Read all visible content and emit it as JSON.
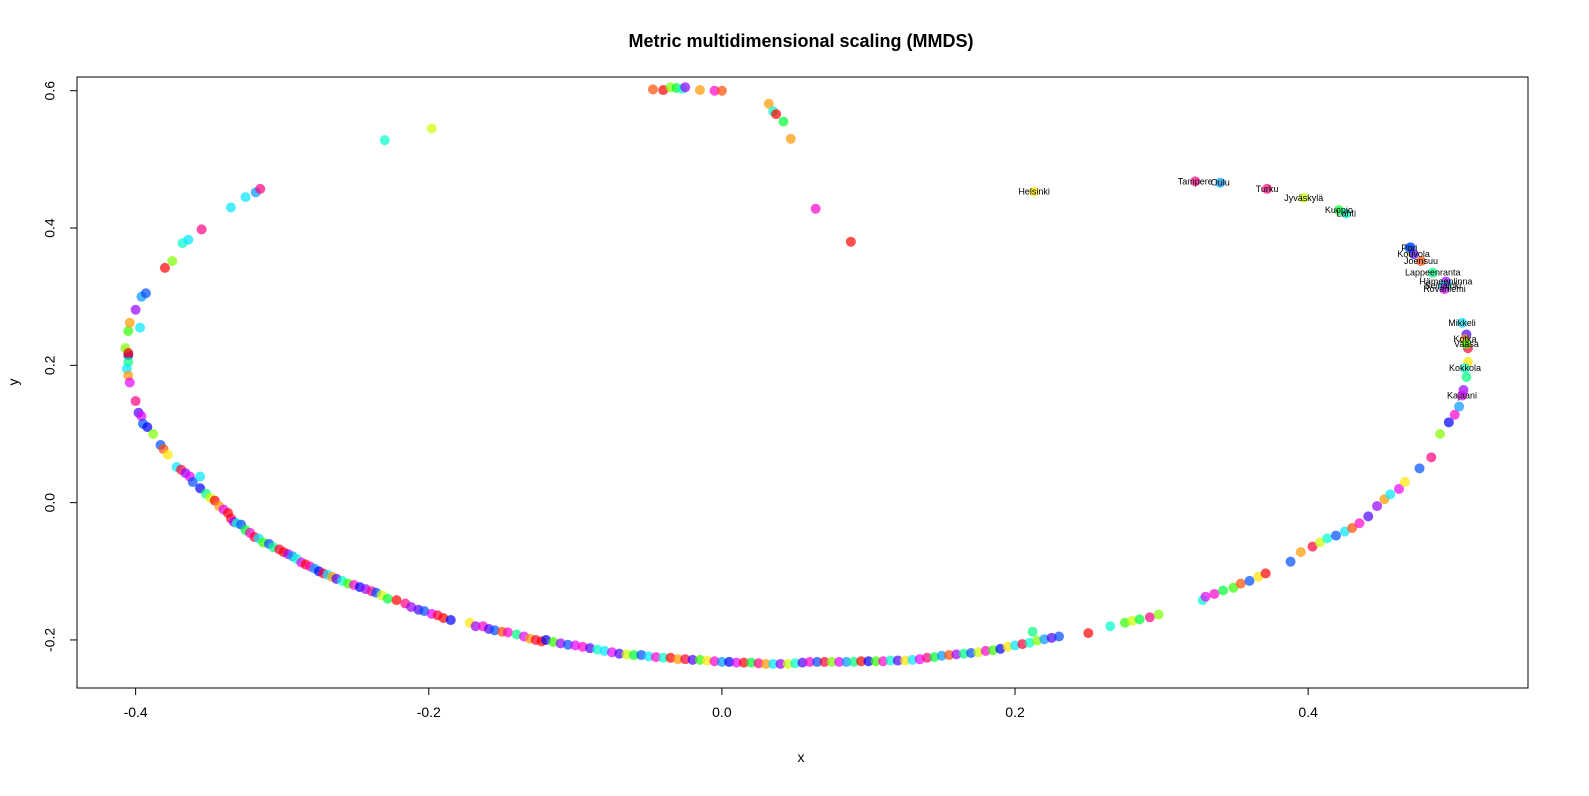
{
  "chart_data": {
    "type": "scatter",
    "title": "Metric multidimensional scaling (MMDS)",
    "xlabel": "x",
    "ylabel": "y",
    "xlim": [
      -0.44,
      0.55
    ],
    "ylim": [
      -0.27,
      0.62
    ],
    "xticks": [
      -0.4,
      -0.2,
      0.0,
      0.2,
      0.4
    ],
    "xtick_labels": [
      "-0.4",
      "-0.2",
      "0.0",
      "0.2",
      "0.4"
    ],
    "yticks": [
      -0.2,
      0.0,
      0.2,
      0.4,
      0.6
    ],
    "ytick_labels": [
      "-0.2",
      "0.0",
      "0.2",
      "0.4",
      "0.6"
    ],
    "grid": false,
    "legend": "none",
    "marker_alpha": 0.7,
    "palette": [
      "#ff0000",
      "#ff4d00",
      "#ff9900",
      "#ffe600",
      "#ccff00",
      "#80ff00",
      "#33ff00",
      "#00ff33",
      "#00ff80",
      "#00ffcc",
      "#00e6ff",
      "#0099ff",
      "#004dff",
      "#0000ff",
      "#4d00ff",
      "#9900ff",
      "#e600ff",
      "#ff00cc",
      "#ff0080",
      "#ff0033"
    ],
    "labeled_points": [
      {
        "label": "Helsinki",
        "x": 0.213,
        "y": 0.453,
        "c": 3
      },
      {
        "label": "Tampere",
        "x": 0.323,
        "y": 0.468,
        "c": 18
      },
      {
        "label": "Oulu",
        "x": 0.34,
        "y": 0.466,
        "c": 11
      },
      {
        "label": "Turku",
        "x": 0.372,
        "y": 0.457,
        "c": 18
      },
      {
        "label": "Jyväskylä",
        "x": 0.397,
        "y": 0.444,
        "c": 4
      },
      {
        "label": "Kuopio",
        "x": 0.421,
        "y": 0.426,
        "c": 7
      },
      {
        "label": "Lahti",
        "x": 0.426,
        "y": 0.421,
        "c": 9
      },
      {
        "label": "Pori",
        "x": 0.469,
        "y": 0.371,
        "c": 12
      },
      {
        "label": "Kouvola",
        "x": 0.472,
        "y": 0.362,
        "c": 14
      },
      {
        "label": "Joensuu",
        "x": 0.477,
        "y": 0.352,
        "c": 1
      },
      {
        "label": "Lappeenranta",
        "x": 0.485,
        "y": 0.335,
        "c": 8
      },
      {
        "label": "Hämeenlinna",
        "x": 0.494,
        "y": 0.322,
        "c": 15
      },
      {
        "label": "Seinäjoki",
        "x": 0.492,
        "y": 0.316,
        "c": 10
      },
      {
        "label": "Rovaniemi",
        "x": 0.493,
        "y": 0.311,
        "c": 16
      },
      {
        "label": "Mikkeli",
        "x": 0.505,
        "y": 0.262,
        "c": 10
      },
      {
        "label": "Kotka",
        "x": 0.507,
        "y": 0.238,
        "c": 2
      },
      {
        "label": "Vaasa",
        "x": 0.508,
        "y": 0.231,
        "c": 6
      },
      {
        "label": "Kokkola",
        "x": 0.507,
        "y": 0.196,
        "c": 9
      },
      {
        "label": "Kajaani",
        "x": 0.505,
        "y": 0.156,
        "c": 16
      }
    ],
    "points": [
      [
        -0.405,
        0.215,
        13
      ],
      [
        -0.405,
        0.205,
        8
      ],
      [
        -0.406,
        0.195,
        10
      ],
      [
        -0.405,
        0.185,
        2
      ],
      [
        -0.404,
        0.175,
        16
      ],
      [
        -0.407,
        0.225,
        5
      ],
      [
        -0.405,
        0.25,
        6
      ],
      [
        -0.404,
        0.262,
        2
      ],
      [
        -0.4,
        0.281,
        15
      ],
      [
        -0.397,
        0.255,
        10
      ],
      [
        -0.4,
        0.148,
        18
      ],
      [
        -0.398,
        0.131,
        14
      ],
      [
        -0.396,
        0.126,
        16
      ],
      [
        -0.395,
        0.115,
        12
      ],
      [
        -0.392,
        0.11,
        13
      ],
      [
        -0.388,
        0.1,
        5
      ],
      [
        -0.383,
        0.084,
        12
      ],
      [
        -0.381,
        0.078,
        1
      ],
      [
        -0.378,
        0.07,
        3
      ],
      [
        -0.372,
        0.052,
        10
      ],
      [
        -0.369,
        0.048,
        19
      ],
      [
        -0.366,
        0.043,
        15
      ],
      [
        -0.363,
        0.038,
        16
      ],
      [
        -0.361,
        0.03,
        12
      ],
      [
        -0.356,
        0.038,
        10
      ],
      [
        -0.356,
        0.021,
        13
      ],
      [
        -0.352,
        0.013,
        8
      ],
      [
        -0.349,
        0.007,
        4
      ],
      [
        -0.346,
        0.003,
        0
      ],
      [
        -0.343,
        -0.005,
        2
      ],
      [
        -0.34,
        -0.01,
        16
      ],
      [
        -0.337,
        -0.015,
        0
      ],
      [
        -0.335,
        -0.023,
        19
      ],
      [
        -0.333,
        -0.028,
        15
      ],
      [
        -0.331,
        -0.03,
        9
      ],
      [
        -0.328,
        -0.032,
        12
      ],
      [
        -0.325,
        -0.04,
        7
      ],
      [
        -0.322,
        -0.044,
        17
      ],
      [
        -0.319,
        -0.05,
        19
      ],
      [
        -0.316,
        -0.052,
        10
      ],
      [
        -0.313,
        -0.058,
        6
      ],
      [
        -0.309,
        -0.06,
        12
      ],
      [
        -0.306,
        -0.065,
        8
      ],
      [
        -0.302,
        -0.068,
        19
      ],
      [
        -0.299,
        -0.072,
        0
      ],
      [
        -0.296,
        -0.075,
        15
      ],
      [
        -0.293,
        -0.078,
        11
      ],
      [
        -0.29,
        -0.082,
        9
      ],
      [
        -0.287,
        -0.087,
        16
      ],
      [
        -0.284,
        -0.09,
        0
      ],
      [
        -0.281,
        -0.093,
        17
      ],
      [
        -0.278,
        -0.096,
        11
      ],
      [
        -0.275,
        -0.1,
        13
      ],
      [
        -0.272,
        -0.103,
        19
      ],
      [
        -0.269,
        -0.105,
        10
      ],
      [
        -0.266,
        -0.108,
        2
      ],
      [
        -0.263,
        -0.111,
        14
      ],
      [
        -0.259,
        -0.114,
        9
      ],
      [
        -0.255,
        -0.118,
        6
      ],
      [
        -0.251,
        -0.12,
        17
      ],
      [
        -0.247,
        -0.123,
        13
      ],
      [
        -0.243,
        -0.126,
        15
      ],
      [
        -0.239,
        -0.129,
        18
      ],
      [
        -0.236,
        -0.131,
        12
      ],
      [
        -0.232,
        -0.135,
        4
      ],
      [
        -0.228,
        -0.14,
        7
      ],
      [
        -0.222,
        -0.142,
        0
      ],
      [
        -0.216,
        -0.147,
        18
      ],
      [
        -0.212,
        -0.152,
        15
      ],
      [
        -0.207,
        -0.156,
        14
      ],
      [
        -0.203,
        -0.158,
        12
      ],
      [
        -0.198,
        -0.162,
        16
      ],
      [
        -0.194,
        -0.164,
        19
      ],
      [
        -0.19,
        -0.168,
        0
      ],
      [
        -0.185,
        -0.171,
        13
      ],
      [
        -0.172,
        -0.175,
        3
      ],
      [
        -0.168,
        -0.18,
        15
      ],
      [
        -0.163,
        -0.18,
        17
      ],
      [
        -0.159,
        -0.184,
        14
      ],
      [
        -0.155,
        -0.186,
        12
      ],
      [
        -0.15,
        -0.188,
        1
      ],
      [
        -0.146,
        -0.189,
        17
      ],
      [
        -0.14,
        -0.192,
        8
      ],
      [
        -0.135,
        -0.195,
        16
      ],
      [
        -0.131,
        -0.198,
        2
      ],
      [
        -0.127,
        -0.2,
        19
      ],
      [
        -0.123,
        -0.202,
        0
      ],
      [
        -0.12,
        -0.2,
        13
      ],
      [
        -0.115,
        -0.203,
        6
      ],
      [
        -0.11,
        -0.205,
        15
      ],
      [
        -0.105,
        -0.207,
        12
      ],
      [
        -0.1,
        -0.208,
        16
      ],
      [
        -0.095,
        -0.21,
        17
      ],
      [
        -0.09,
        -0.212,
        14
      ],
      [
        -0.085,
        -0.214,
        9
      ],
      [
        -0.08,
        -0.216,
        10
      ],
      [
        -0.075,
        -0.218,
        16
      ],
      [
        -0.07,
        -0.22,
        14
      ],
      [
        -0.065,
        -0.221,
        4
      ],
      [
        -0.06,
        -0.222,
        7
      ],
      [
        -0.055,
        -0.222,
        12
      ],
      [
        -0.05,
        -0.224,
        10
      ],
      [
        -0.045,
        -0.225,
        17
      ],
      [
        -0.04,
        -0.226,
        9
      ],
      [
        -0.035,
        -0.226,
        0
      ],
      [
        -0.03,
        -0.228,
        2
      ],
      [
        -0.025,
        -0.228,
        19
      ],
      [
        -0.02,
        -0.229,
        14
      ],
      [
        -0.015,
        -0.229,
        6
      ],
      [
        -0.01,
        -0.23,
        3
      ],
      [
        -0.005,
        -0.231,
        17
      ],
      [
        0.0,
        -0.232,
        11
      ],
      [
        0.005,
        -0.232,
        13
      ],
      [
        0.01,
        -0.233,
        16
      ],
      [
        0.015,
        -0.233,
        0
      ],
      [
        0.02,
        -0.233,
        7
      ],
      [
        0.025,
        -0.234,
        18
      ],
      [
        0.03,
        -0.235,
        2
      ],
      [
        0.035,
        -0.235,
        10
      ],
      [
        0.04,
        -0.235,
        15
      ],
      [
        0.045,
        -0.235,
        4
      ],
      [
        0.05,
        -0.234,
        9
      ],
      [
        0.055,
        -0.233,
        14
      ],
      [
        0.06,
        -0.232,
        17
      ],
      [
        0.065,
        -0.232,
        12
      ],
      [
        0.07,
        -0.232,
        19
      ],
      [
        0.075,
        -0.232,
        5
      ],
      [
        0.08,
        -0.232,
        16
      ],
      [
        0.085,
        -0.232,
        11
      ],
      [
        0.09,
        -0.232,
        8
      ],
      [
        0.095,
        -0.231,
        0
      ],
      [
        0.1,
        -0.231,
        13
      ],
      [
        0.105,
        -0.231,
        6
      ],
      [
        0.11,
        -0.231,
        17
      ],
      [
        0.115,
        -0.23,
        9
      ],
      [
        0.12,
        -0.23,
        14
      ],
      [
        0.125,
        -0.23,
        3
      ],
      [
        0.13,
        -0.229,
        10
      ],
      [
        0.135,
        -0.228,
        16
      ],
      [
        0.14,
        -0.226,
        18
      ],
      [
        0.145,
        -0.225,
        7
      ],
      [
        0.15,
        -0.223,
        11
      ],
      [
        0.155,
        -0.222,
        1
      ],
      [
        0.16,
        -0.221,
        15
      ],
      [
        0.165,
        -0.22,
        8
      ],
      [
        0.17,
        -0.219,
        12
      ],
      [
        0.175,
        -0.218,
        4
      ],
      [
        0.18,
        -0.216,
        17
      ],
      [
        0.185,
        -0.215,
        6
      ],
      [
        0.19,
        -0.213,
        13
      ],
      [
        0.195,
        -0.21,
        3
      ],
      [
        0.2,
        -0.208,
        10
      ],
      [
        0.205,
        -0.206,
        19
      ],
      [
        0.21,
        -0.204,
        9
      ],
      [
        0.215,
        -0.201,
        5
      ],
      [
        0.22,
        -0.199,
        11
      ],
      [
        0.225,
        -0.197,
        14
      ],
      [
        0.212,
        -0.188,
        8
      ],
      [
        0.23,
        -0.195,
        12
      ],
      [
        0.25,
        -0.19,
        0
      ],
      [
        0.265,
        -0.18,
        9
      ],
      [
        0.275,
        -0.175,
        6
      ],
      [
        0.28,
        -0.172,
        4
      ],
      [
        0.285,
        -0.17,
        7
      ],
      [
        0.292,
        -0.167,
        18
      ],
      [
        0.298,
        -0.163,
        5
      ],
      [
        0.328,
        -0.142,
        9
      ],
      [
        0.33,
        -0.137,
        16
      ],
      [
        0.336,
        -0.133,
        17
      ],
      [
        0.342,
        -0.128,
        7
      ],
      [
        0.349,
        -0.124,
        6
      ],
      [
        0.354,
        -0.118,
        1
      ],
      [
        0.36,
        -0.114,
        12
      ],
      [
        0.366,
        -0.108,
        3
      ],
      [
        0.371,
        -0.103,
        0
      ],
      [
        0.388,
        -0.086,
        12
      ],
      [
        0.395,
        -0.072,
        2
      ],
      [
        0.403,
        -0.064,
        19
      ],
      [
        0.408,
        -0.058,
        4
      ],
      [
        0.413,
        -0.052,
        9
      ],
      [
        0.419,
        -0.048,
        12
      ],
      [
        0.425,
        -0.042,
        10
      ],
      [
        0.43,
        -0.037,
        1
      ],
      [
        0.435,
        -0.03,
        17
      ],
      [
        0.441,
        -0.02,
        14
      ],
      [
        0.447,
        -0.005,
        15
      ],
      [
        0.452,
        0.005,
        2
      ],
      [
        0.456,
        0.012,
        10
      ],
      [
        0.462,
        0.02,
        16
      ],
      [
        0.466,
        0.03,
        3
      ],
      [
        0.476,
        0.05,
        12
      ],
      [
        0.484,
        0.066,
        18
      ],
      [
        0.49,
        0.1,
        5
      ],
      [
        0.496,
        0.117,
        13
      ],
      [
        0.5,
        0.128,
        17
      ],
      [
        0.503,
        0.14,
        11
      ],
      [
        0.506,
        0.164,
        15
      ],
      [
        0.508,
        0.183,
        8
      ],
      [
        0.509,
        0.205,
        3
      ],
      [
        0.509,
        0.225,
        19
      ],
      [
        0.508,
        0.245,
        14
      ],
      [
        0.495,
        0.318,
        9
      ],
      [
        0.47,
        0.366,
        4
      ],
      [
        0.47,
        0.372,
        12
      ],
      [
        -0.405,
        0.218,
        0
      ],
      [
        -0.396,
        0.3,
        11
      ],
      [
        -0.393,
        0.305,
        12
      ],
      [
        -0.38,
        0.342,
        0
      ],
      [
        -0.375,
        0.352,
        5
      ],
      [
        -0.368,
        0.378,
        9
      ],
      [
        -0.364,
        0.383,
        10
      ],
      [
        -0.355,
        0.398,
        18
      ],
      [
        -0.335,
        0.43,
        10
      ],
      [
        -0.325,
        0.445,
        10
      ],
      [
        -0.318,
        0.452,
        11
      ],
      [
        -0.315,
        0.457,
        18
      ],
      [
        -0.23,
        0.528,
        9
      ],
      [
        -0.198,
        0.545,
        4
      ],
      [
        -0.047,
        0.602,
        1
      ],
      [
        -0.04,
        0.601,
        0
      ],
      [
        -0.035,
        0.605,
        5
      ],
      [
        -0.031,
        0.604,
        7
      ],
      [
        -0.027,
        0.603,
        9
      ],
      [
        -0.025,
        0.605,
        15
      ],
      [
        -0.015,
        0.601,
        2
      ],
      [
        -0.005,
        0.6,
        17
      ],
      [
        0.0,
        0.6,
        1
      ],
      [
        0.032,
        0.581,
        2
      ],
      [
        0.035,
        0.57,
        9
      ],
      [
        0.037,
        0.566,
        0
      ],
      [
        0.042,
        0.555,
        7
      ],
      [
        0.047,
        0.53,
        2
      ],
      [
        0.064,
        0.428,
        17
      ],
      [
        0.088,
        0.38,
        0
      ]
    ]
  }
}
